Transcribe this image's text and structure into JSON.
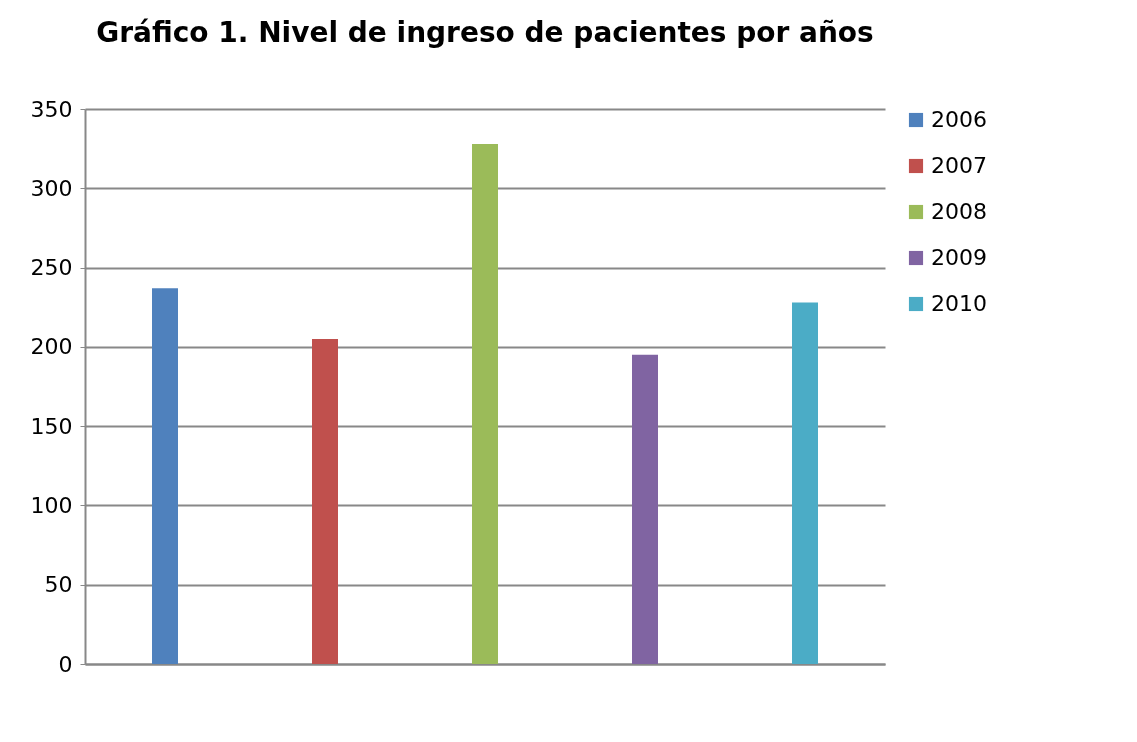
{
  "chart_data": {
    "type": "bar",
    "title": "Gráfico 1. Nivel de ingreso de pacientes por años",
    "categories": [
      null,
      null,
      null,
      null,
      null
    ],
    "series": [
      {
        "name": "2006",
        "color": "#4f81bd",
        "values": [
          237,
          null,
          null,
          null,
          null
        ]
      },
      {
        "name": "2007",
        "color": "#c0504d",
        "values": [
          null,
          205,
          null,
          null,
          null
        ]
      },
      {
        "name": "2008",
        "color": "#9bbb59",
        "values": [
          null,
          null,
          328,
          null,
          null
        ]
      },
      {
        "name": "2009",
        "color": "#8064a2",
        "values": [
          null,
          null,
          null,
          195,
          null
        ]
      },
      {
        "name": "2010",
        "color": "#4bacc6",
        "values": [
          null,
          null,
          null,
          null,
          228
        ]
      }
    ],
    "ylim": [
      0,
      350
    ],
    "yticks": [
      0,
      50,
      100,
      150,
      200,
      250,
      300,
      350
    ],
    "grid": "y",
    "legend": "right",
    "tick_labels": "y"
  }
}
